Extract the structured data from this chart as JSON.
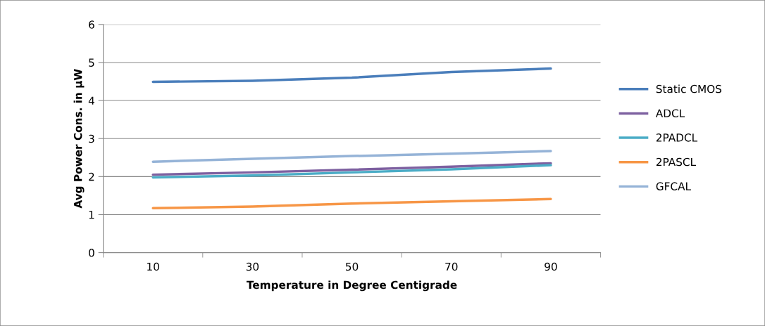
{
  "chart_data": {
    "type": "line",
    "xlabel": "Temperature in Degree Centigrade",
    "ylabel": "Avg Power Cons. in µW",
    "categories": [
      "10",
      "30",
      "50",
      "70",
      "90"
    ],
    "ylim": [
      0,
      6
    ],
    "yticks": [
      0,
      1,
      2,
      3,
      4,
      5,
      6
    ],
    "grid": "y",
    "legend": "right",
    "marker": "none",
    "line_style": "solid",
    "series": [
      {
        "name": "Static CMOS",
        "color": "#4a7ebb",
        "values": [
          4.49,
          4.52,
          4.6,
          4.75,
          4.84
        ]
      },
      {
        "name": "ADCL",
        "color": "#7d60a0",
        "values": [
          2.05,
          2.11,
          2.18,
          2.26,
          2.35
        ]
      },
      {
        "name": "2PADCL",
        "color": "#4aacc6",
        "values": [
          1.98,
          2.03,
          2.11,
          2.19,
          2.3
        ]
      },
      {
        "name": "2PASCL",
        "color": "#f79646",
        "values": [
          1.17,
          1.21,
          1.29,
          1.35,
          1.41
        ]
      },
      {
        "name": "GFCAL",
        "color": "#95b3d7",
        "values": [
          2.39,
          2.47,
          2.54,
          2.6,
          2.67
        ]
      }
    ]
  }
}
